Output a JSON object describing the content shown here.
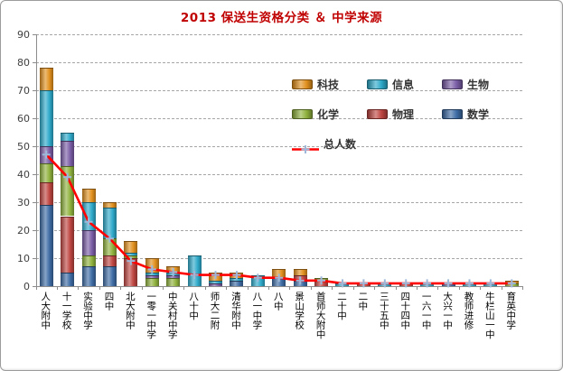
{
  "chart_data": {
    "type": "bar",
    "subtype": "stacked-column-with-line",
    "title": "2013 保送生资格分类 ＆ 中学来源",
    "title_color": "#c00000",
    "categories": [
      "人大附中",
      "十一学校",
      "实验中学",
      "四中",
      "北大附中",
      "一零一中学",
      "中关村中学",
      "八十中",
      "师大二附",
      "清华附中",
      "八一中学",
      "八中",
      "景山学校",
      "首师大附中",
      "二十中",
      "二中",
      "三十五中",
      "四十四中",
      "一六一中",
      "大兴一中",
      "教师进修",
      "牛栏山一中",
      "育英中学"
    ],
    "series": [
      {
        "name": "数学",
        "color": "#3e6ca5",
        "values": [
          29,
          5,
          7,
          7,
          0,
          0,
          0,
          0,
          0,
          2,
          0,
          3,
          2,
          0,
          0,
          0,
          0,
          0,
          0,
          1,
          0,
          0,
          0
        ]
      },
      {
        "name": "物理",
        "color": "#be4540",
        "values": [
          8,
          20,
          0,
          4,
          10,
          0,
          0,
          0,
          0,
          0,
          0,
          0,
          2,
          2,
          0,
          1,
          0,
          1,
          0,
          0,
          0,
          0,
          0
        ]
      },
      {
        "name": "化学",
        "color": "#8fb13d",
        "values": [
          7,
          18,
          4,
          6,
          1,
          3,
          3,
          0,
          0,
          0,
          0,
          0,
          0,
          1,
          0,
          0,
          0,
          0,
          0,
          0,
          0,
          0,
          1
        ]
      },
      {
        "name": "生物",
        "color": "#7a5da6",
        "values": [
          6,
          9,
          9,
          0,
          0,
          1,
          1,
          0,
          1,
          0,
          0,
          0,
          0,
          0,
          0,
          0,
          0,
          0,
          0,
          0,
          0,
          0,
          0
        ]
      },
      {
        "name": "信息",
        "color": "#2ea9c9",
        "values": [
          20,
          3,
          10,
          11,
          1,
          1,
          1,
          11,
          1,
          1,
          4,
          0,
          0,
          0,
          1,
          0,
          1,
          0,
          1,
          0,
          1,
          1,
          0
        ]
      },
      {
        "name": "科技",
        "color": "#e1901e",
        "values": [
          8,
          0,
          5,
          2,
          4,
          5,
          2,
          0,
          3,
          2,
          0,
          3,
          2,
          0,
          0,
          0,
          0,
          0,
          0,
          0,
          0,
          0,
          1
        ]
      }
    ],
    "line_series": {
      "name": "总人数",
      "color": "#ff0000",
      "marker": "plus",
      "marker_color": "#9db8d9",
      "values": [
        47,
        39,
        23,
        17,
        9,
        6,
        5,
        4,
        4,
        4,
        3,
        3,
        2,
        2,
        1,
        1,
        1,
        1,
        1,
        1,
        1,
        1,
        1
      ]
    },
    "ylim": [
      0,
      90
    ],
    "ytick_step": 10,
    "yticks": [
      "0",
      "10",
      "20",
      "30",
      "40",
      "50",
      "60",
      "70",
      "80",
      "90"
    ],
    "grid": "horizontal-dashed",
    "legend_position": "inside-top-right",
    "legend_order": [
      "科技",
      "信息",
      "生物",
      "化学",
      "物理",
      "数学",
      "总人数"
    ]
  }
}
